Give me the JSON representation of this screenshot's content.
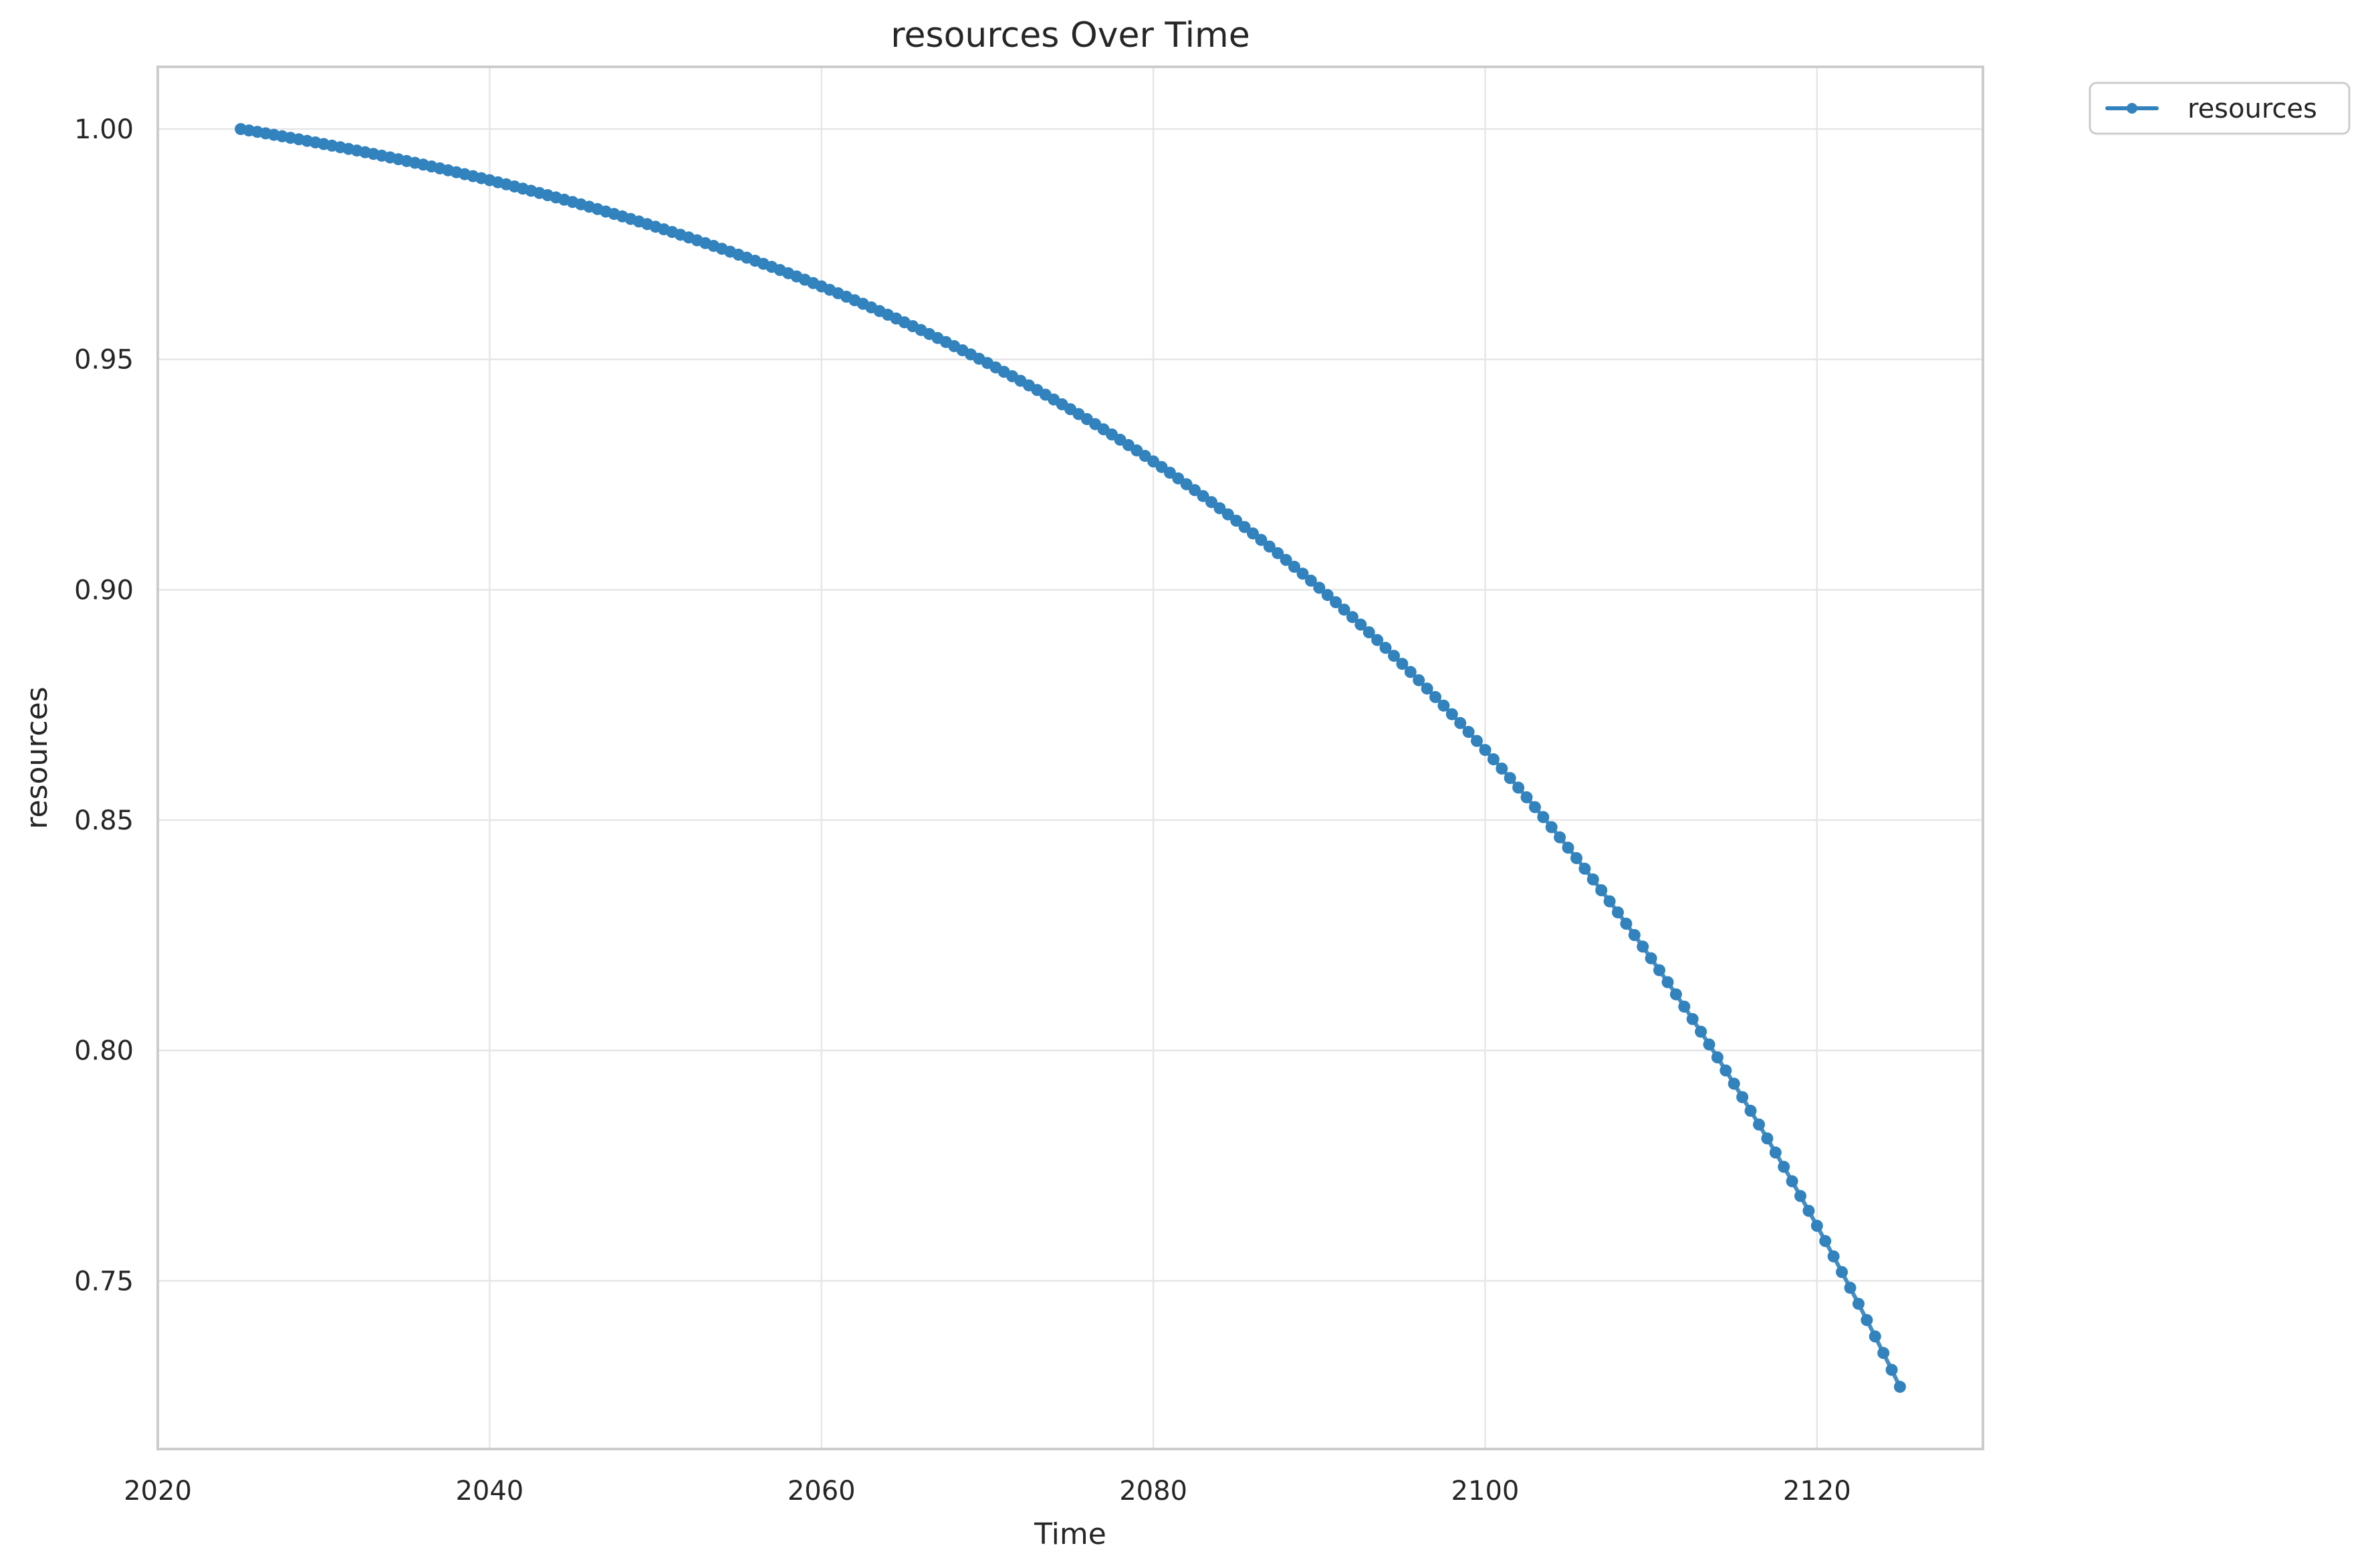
{
  "chart_data": {
    "type": "line",
    "title": "resources Over Time",
    "xlabel": "Time",
    "ylabel": "resources",
    "xlim": [
      2020,
      2130
    ],
    "ylim": [
      0.7135,
      1.0135
    ],
    "x_ticks": [
      2020,
      2040,
      2060,
      2080,
      2100,
      2120
    ],
    "x_tick_labels": [
      "2020",
      "2040",
      "2060",
      "2080",
      "2100",
      "2120"
    ],
    "y_ticks": [
      0.75,
      0.8,
      0.85,
      0.9,
      0.95,
      1.0
    ],
    "y_tick_labels": [
      "0.75",
      "0.80",
      "0.85",
      "0.90",
      "0.95",
      "1.00"
    ],
    "grid": true,
    "legend_position": "outside-top-right",
    "series": [
      {
        "name": "resources",
        "color": "#3182bd",
        "marker": "circle",
        "x_start": 2025,
        "x_end": 2125,
        "x_step": 0.5,
        "y_start": 1.0,
        "y_end": 0.727,
        "y_at_2040": 0.9945,
        "y_at_2060": 0.981,
        "y_at_2080": 0.955,
        "y_at_2100": 0.9,
        "y_at_2110": 0.85,
        "y_at_2120": 0.775
      }
    ]
  }
}
